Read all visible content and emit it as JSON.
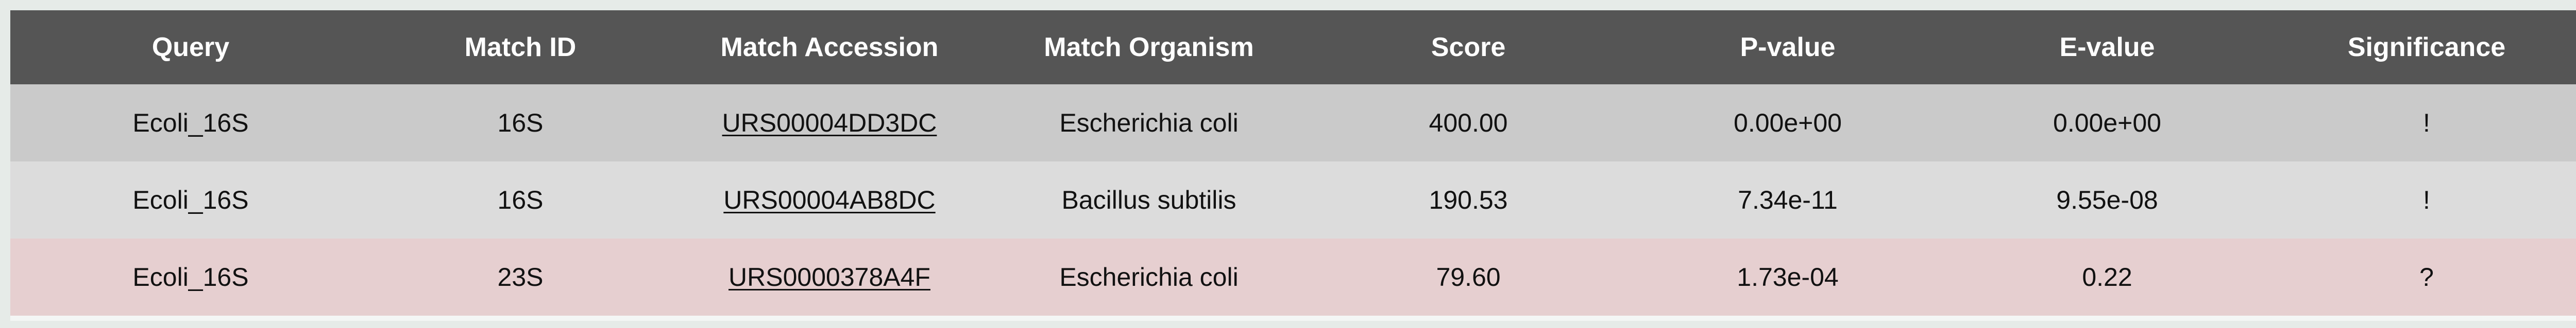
{
  "columns": {
    "query": "Query",
    "match_id": "Match ID",
    "match_accession": "Match Accession",
    "match_organism": "Match Organism",
    "score": "Score",
    "p_value": "P-value",
    "e_value": "E-value",
    "significance": "Significance"
  },
  "rows": [
    {
      "query": "Ecoli_16S",
      "match_id": "16S",
      "match_accession": "URS00004DD3DC",
      "match_organism": "Escherichia coli",
      "score": "400.00",
      "p_value": "0.00e+00",
      "e_value": "0.00e+00",
      "significance": "!"
    },
    {
      "query": "Ecoli_16S",
      "match_id": "16S",
      "match_accession": "URS00004AB8DC",
      "match_organism": "Bacillus subtilis",
      "score": "190.53",
      "p_value": "7.34e-11",
      "e_value": "9.55e-08",
      "significance": "!"
    },
    {
      "query": "Ecoli_16S",
      "match_id": "23S",
      "match_accession": "URS0000378A4F",
      "match_organism": "Escherichia coli",
      "score": "79.60",
      "p_value": "1.73e-04",
      "e_value": "0.22",
      "significance": "?"
    }
  ],
  "colors": {
    "header_bg": "#555555",
    "header_text": "#ffffff",
    "row_1_bg": "#cacaca",
    "row_2_bg": "#dcdcdc",
    "row_3_bg": "#e6cfd0"
  }
}
